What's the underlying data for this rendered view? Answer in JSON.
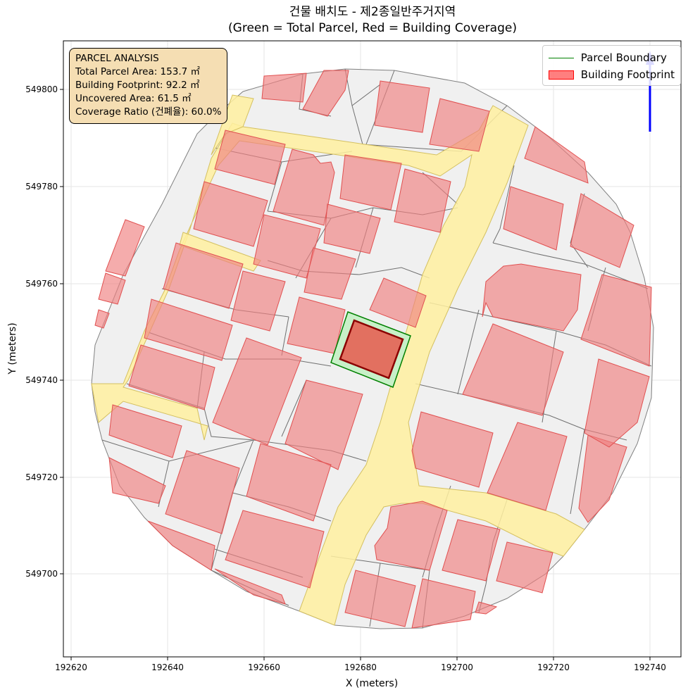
{
  "title": {
    "line1": "건물 배치도 - 제2종일반주거지역",
    "line2": "(Green = Total Parcel, Red = Building Coverage)"
  },
  "axes": {
    "xlabel": "X (meters)",
    "ylabel": "Y (meters)",
    "xticks": [
      "192620",
      "192640",
      "192660",
      "192680",
      "192700",
      "192720",
      "192740"
    ],
    "yticks": [
      "549800",
      "549780",
      "549760",
      "549740",
      "549720",
      "549700"
    ]
  },
  "legend": {
    "parcel_boundary": "Parcel Boundary",
    "building_footprint": "Building Footprint"
  },
  "infobox": {
    "heading": "PARCEL ANALYSIS",
    "total_area": "Total Parcel Area: 153.7 ㎡",
    "footprint": "Building Footprint: 92.2 ㎡",
    "uncovered": "Uncovered Area: 61.5 ㎡",
    "coverage": "Coverage Ratio (건폐율): 60.0%"
  },
  "colors": {
    "parcel_fill": "#c8f0c8",
    "parcel_edge": "#008000",
    "target_building": "#e27060",
    "buildings": "#f08080",
    "roads": "#fff0a0",
    "context": "#f0f0f0",
    "north_arrow": "#0000ff"
  }
}
